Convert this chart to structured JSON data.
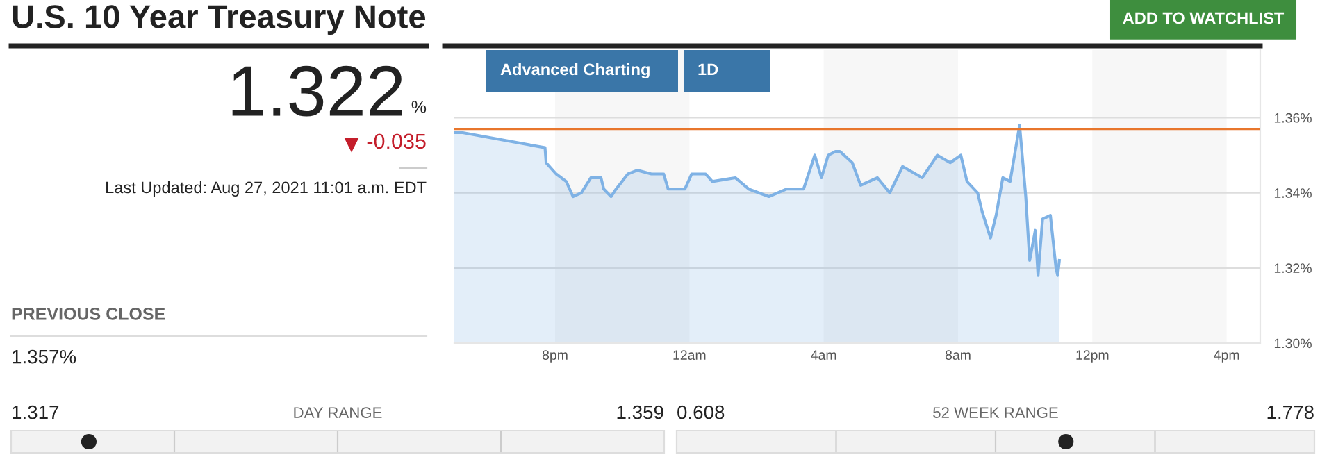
{
  "chart_data": [
    {
      "type": "other",
      "title": "U.S. 10 Year Treasury Note",
      "annotations": [
        "1.322",
        "%",
        "-0.035",
        "Last Updated: Aug 27, 2021 11:01 a.m. EDT",
        "PREVIOUS CLOSE",
        "1.357%",
        "1.317",
        "DAY RANGE",
        "1.359",
        "0.608",
        "52 WEEK RANGE",
        "1.778",
        "ADD TO WATCHLIST"
      ]
    },
    {
      "type": "area",
      "series": [
        {
          "color": "#7fb2e5",
          "x": [
            "2021-08-26T17:00",
            "2021-08-26T17:15",
            "2021-08-26T19:42",
            "2021-08-26T19:44",
            "2021-08-26T20:02",
            "2021-08-26T20:20",
            "2021-08-26T20:32",
            "2021-08-26T20:47",
            "2021-08-26T21:04",
            "2021-08-26T21:22",
            "2021-08-26T21:27",
            "2021-08-26T21:40",
            "2021-08-26T21:49",
            "2021-08-26T22:10",
            "2021-08-26T22:27",
            "2021-08-26T22:52",
            "2021-08-26T23:14",
            "2021-08-26T23:22",
            "2021-08-26T23:52",
            "2021-08-27T00:04",
            "2021-08-27T00:29",
            "2021-08-27T00:41",
            "2021-08-27T01:22",
            "2021-08-27T01:46",
            "2021-08-27T02:22",
            "2021-08-27T02:54",
            "2021-08-27T03:24",
            "2021-08-27T03:44",
            "2021-08-27T03:56",
            "2021-08-27T04:08",
            "2021-08-27T04:21",
            "2021-08-27T04:29",
            "2021-08-27T04:51",
            "2021-08-27T05:06",
            "2021-08-27T05:36",
            "2021-08-27T05:58",
            "2021-08-27T06:21",
            "2021-08-27T06:56",
            "2021-08-27T07:23",
            "2021-08-27T07:46",
            "2021-08-27T08:05",
            "2021-08-27T08:16",
            "2021-08-27T08:35",
            "2021-08-27T08:43",
            "2021-08-27T08:58",
            "2021-08-27T09:08",
            "2021-08-27T09:20",
            "2021-08-27T09:33",
            "2021-08-27T09:50",
            "2021-08-27T10:01",
            "2021-08-27T10:08",
            "2021-08-27T10:18",
            "2021-08-27T10:23",
            "2021-08-27T10:31",
            "2021-08-27T10:45",
            "2021-08-27T10:55",
            "2021-08-27T10:58",
            "2021-08-27T11:01"
          ],
          "values": [
            1.356,
            1.356,
            1.352,
            1.348,
            1.345,
            1.343,
            1.339,
            1.34,
            1.344,
            1.344,
            1.341,
            1.339,
            1.341,
            1.345,
            1.346,
            1.345,
            1.345,
            1.341,
            1.341,
            1.345,
            1.345,
            1.343,
            1.344,
            1.341,
            1.339,
            1.341,
            1.341,
            1.35,
            1.344,
            1.35,
            1.351,
            1.351,
            1.348,
            1.342,
            1.344,
            1.34,
            1.347,
            1.344,
            1.35,
            1.348,
            1.35,
            1.343,
            1.34,
            1.335,
            1.328,
            1.334,
            1.344,
            1.343,
            1.358,
            1.339,
            1.322,
            1.33,
            1.318,
            1.333,
            1.334,
            1.32,
            1.318,
            1.322
          ]
        }
      ],
      "xlim": [
        "2021-08-26T17:00",
        "2021-08-27T17:00"
      ],
      "xticks": [
        {
          "value": "2021-08-26T20:00",
          "label": "8pm"
        },
        {
          "value": "2021-08-27T00:00",
          "label": "12am"
        },
        {
          "value": "2021-08-27T04:00",
          "label": "4am"
        },
        {
          "value": "2021-08-27T08:00",
          "label": "8am"
        },
        {
          "value": "2021-08-27T12:00",
          "label": "12pm"
        },
        {
          "value": "2021-08-27T16:00",
          "label": "4pm"
        }
      ],
      "ylim": [
        1.3,
        1.378
      ],
      "yticks": [
        {
          "value": 1.3,
          "label": "1.30%"
        },
        {
          "value": 1.32,
          "label": "1.32%"
        },
        {
          "value": 1.34,
          "label": "1.34%"
        },
        {
          "value": 1.36,
          "label": "1.36%"
        }
      ],
      "grid": "y",
      "ref_lines": [
        {
          "axis": "y",
          "value": 1.357,
          "color": "#e8762c"
        }
      ],
      "bands": [
        {
          "axis": "x",
          "from": "2021-08-26T20:00",
          "to": "2021-08-27T00:00",
          "color": "#f7f7f7"
        },
        {
          "axis": "x",
          "from": "2021-08-27T04:00",
          "to": "2021-08-27T08:00",
          "color": "#f7f7f7"
        },
        {
          "axis": "x",
          "from": "2021-08-27T12:00",
          "to": "2021-08-27T16:00",
          "color": "#f7f7f7"
        }
      ],
      "annotations": [
        "Advanced Charting",
        "1D"
      ]
    }
  ]
}
